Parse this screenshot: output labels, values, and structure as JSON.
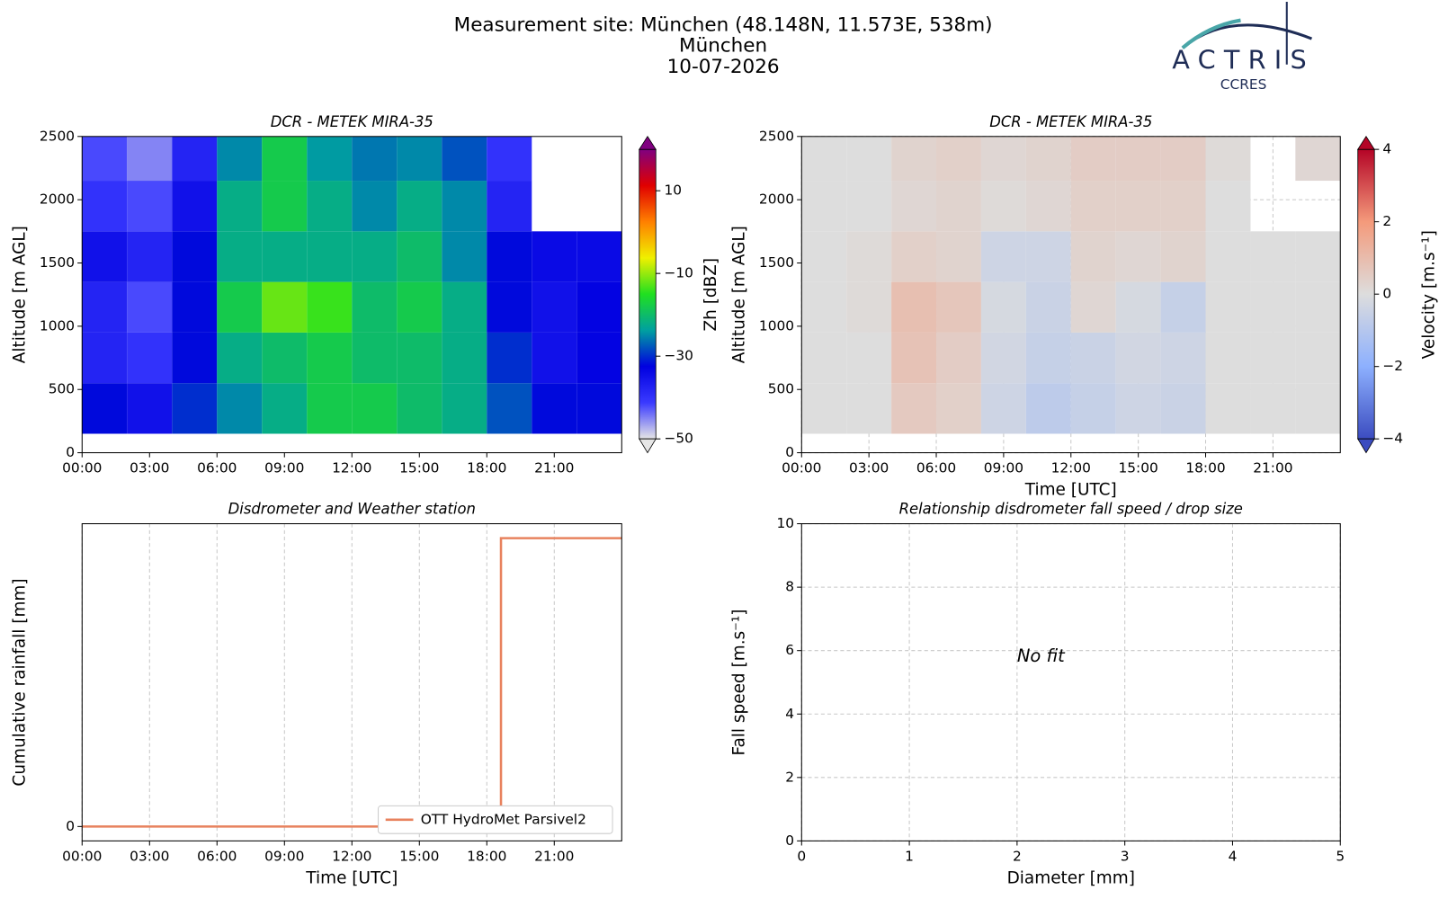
{
  "header": {
    "title": "Measurement site: München (48.148N, 11.573E, 538m)",
    "subtitle": "München",
    "date": "10-07-2026"
  },
  "logo": {
    "name": "ACTRIS",
    "subname": "CCRES"
  },
  "chart_data": [
    {
      "type": "heatmap",
      "title": "DCR - METEK MIRA-35",
      "ylabel": "Altitude [m AGL]",
      "xlim": [
        0,
        24
      ],
      "xticks": [
        {
          "value": 0,
          "label": "00:00"
        },
        {
          "value": 3,
          "label": "03:00"
        },
        {
          "value": 6,
          "label": "06:00"
        },
        {
          "value": 9,
          "label": "09:00"
        },
        {
          "value": 12,
          "label": "12:00"
        },
        {
          "value": 15,
          "label": "15:00"
        },
        {
          "value": 18,
          "label": "18:00"
        },
        {
          "value": 21,
          "label": "21:00"
        }
      ],
      "ylim": [
        0,
        2500
      ],
      "yticks": [
        0,
        500,
        1000,
        1500,
        2000,
        2500
      ],
      "grid": false,
      "xbins": [
        0,
        2,
        4,
        6,
        8,
        10,
        12,
        14,
        16,
        18,
        20,
        22,
        24
      ],
      "ybins": [
        150,
        550,
        950,
        1350,
        1750,
        2150,
        2500
      ],
      "z": [
        [
          -32,
          -35,
          -30,
          -25,
          -22,
          -18,
          -18,
          -20,
          -22,
          -28,
          -32,
          -32
        ],
        [
          -38,
          -40,
          -32,
          -22,
          -20,
          -18,
          -20,
          -20,
          -22,
          -30,
          -35,
          -33
        ],
        [
          -38,
          -42,
          -32,
          -18,
          -12,
          -14,
          -20,
          -18,
          -22,
          -32,
          -35,
          -33
        ],
        [
          -35,
          -38,
          -32,
          -22,
          -22,
          -22,
          -22,
          -20,
          -25,
          -32,
          -34,
          -34
        ],
        [
          -40,
          -42,
          -35,
          -22,
          -18,
          -22,
          -25,
          -22,
          -25,
          -38,
          null,
          null
        ],
        [
          -42,
          -45,
          -38,
          -25,
          -18,
          -24,
          -26,
          -25,
          -28,
          -40,
          null,
          null
        ]
      ],
      "clim": [
        -50,
        20
      ],
      "colors": [
        "#e6e6e6",
        "#3a3aff",
        "#0000e0",
        "#00a0a0",
        "#20e020",
        "#f0f000",
        "#ff8000",
        "#e00000",
        "#800080"
      ],
      "colorbar_label": "Zh [dBZ]",
      "cticks": [
        {
          "value": -50,
          "label": "−50"
        },
        {
          "value": -30,
          "label": "−30"
        },
        {
          "value": -10,
          "label": "−10"
        },
        10
      ]
    },
    {
      "type": "heatmap",
      "title": "DCR - METEK MIRA-35",
      "ylabel": "Altitude [m AGL]",
      "xlabel": "Time [UTC]",
      "xlim": [
        0,
        24
      ],
      "xticks": [
        {
          "value": 0,
          "label": "00:00"
        },
        {
          "value": 3,
          "label": "03:00"
        },
        {
          "value": 6,
          "label": "06:00"
        },
        {
          "value": 9,
          "label": "09:00"
        },
        {
          "value": 12,
          "label": "12:00"
        },
        {
          "value": 15,
          "label": "15:00"
        },
        {
          "value": 18,
          "label": "18:00"
        },
        {
          "value": 21,
          "label": "21:00"
        }
      ],
      "ylim": [
        0,
        2500
      ],
      "yticks": [
        0,
        500,
        1000,
        1500,
        2000,
        2500
      ],
      "grid": "both",
      "xbins": [
        0,
        2,
        4,
        6,
        8,
        10,
        12,
        14,
        16,
        18,
        20,
        22,
        24
      ],
      "ybins": [
        150,
        550,
        950,
        1350,
        1750,
        2150,
        2500
      ],
      "z": [
        [
          0,
          0,
          0.6,
          0.4,
          -0.4,
          -0.8,
          -0.6,
          -0.4,
          -0.5,
          0,
          0,
          0
        ],
        [
          0,
          0,
          0.8,
          0.5,
          -0.3,
          -0.6,
          -0.5,
          -0.3,
          -0.4,
          0,
          0,
          0
        ],
        [
          0,
          0.1,
          0.9,
          0.7,
          -0.2,
          -0.5,
          0.2,
          -0.2,
          -0.6,
          0,
          0,
          0
        ],
        [
          0,
          0.1,
          0.4,
          0.3,
          -0.4,
          -0.4,
          0.3,
          0.2,
          0.3,
          0,
          0,
          0
        ],
        [
          0,
          0,
          0.2,
          0.3,
          0.1,
          0.2,
          0.4,
          0.4,
          0.4,
          0,
          null,
          null
        ],
        [
          0,
          0,
          0.3,
          0.4,
          0.2,
          0.3,
          0.5,
          0.5,
          0.5,
          0.1,
          null,
          0.2
        ]
      ],
      "clim": [
        -4,
        4
      ],
      "colors": [
        "#3b4cc0",
        "#8db0fe",
        "#dddddd",
        "#f49a7b",
        "#b40426"
      ],
      "colorbar_label": "Velocity [m.s⁻¹]",
      "cticks": [
        {
          "value": -4,
          "label": "−4"
        },
        {
          "value": -2,
          "label": "−2"
        },
        0,
        2,
        4
      ]
    },
    {
      "type": "line",
      "title": "Disdrometer and Weather station",
      "ylabel": "Cumulative rainfall [mm]",
      "xlabel": "Time [UTC]",
      "xlim": [
        0,
        24
      ],
      "xticks": [
        {
          "value": 0,
          "label": "00:00"
        },
        {
          "value": 3,
          "label": "03:00"
        },
        {
          "value": 6,
          "label": "06:00"
        },
        {
          "value": 9,
          "label": "09:00"
        },
        {
          "value": 12,
          "label": "12:00"
        },
        {
          "value": 15,
          "label": "15:00"
        },
        {
          "value": 18,
          "label": "18:00"
        },
        {
          "value": 21,
          "label": "21:00"
        }
      ],
      "ylim": [
        -0.005,
        0.105
      ],
      "yticks": [
        0
      ],
      "grid": "x",
      "x": [
        0,
        18.63,
        18.63,
        24
      ],
      "series": [
        {
          "name": "OTT HydroMet Parsivel2",
          "color": "#e8825e",
          "values": [
            0,
            0,
            0.1,
            0.1
          ]
        }
      ],
      "legend": "lower right"
    },
    {
      "type": "scatter",
      "title": "Relationship disdrometer fall speed / drop size",
      "ylabel": "Fall speed [m.s⁻¹]",
      "xlabel": "Diameter [mm]",
      "xlim": [
        0,
        5
      ],
      "xticks": [
        0,
        1,
        2,
        3,
        4,
        5
      ],
      "ylim": [
        0,
        10
      ],
      "yticks": [
        0,
        2,
        4,
        6,
        8,
        10
      ],
      "grid": "both",
      "annotation": "No fit"
    }
  ]
}
